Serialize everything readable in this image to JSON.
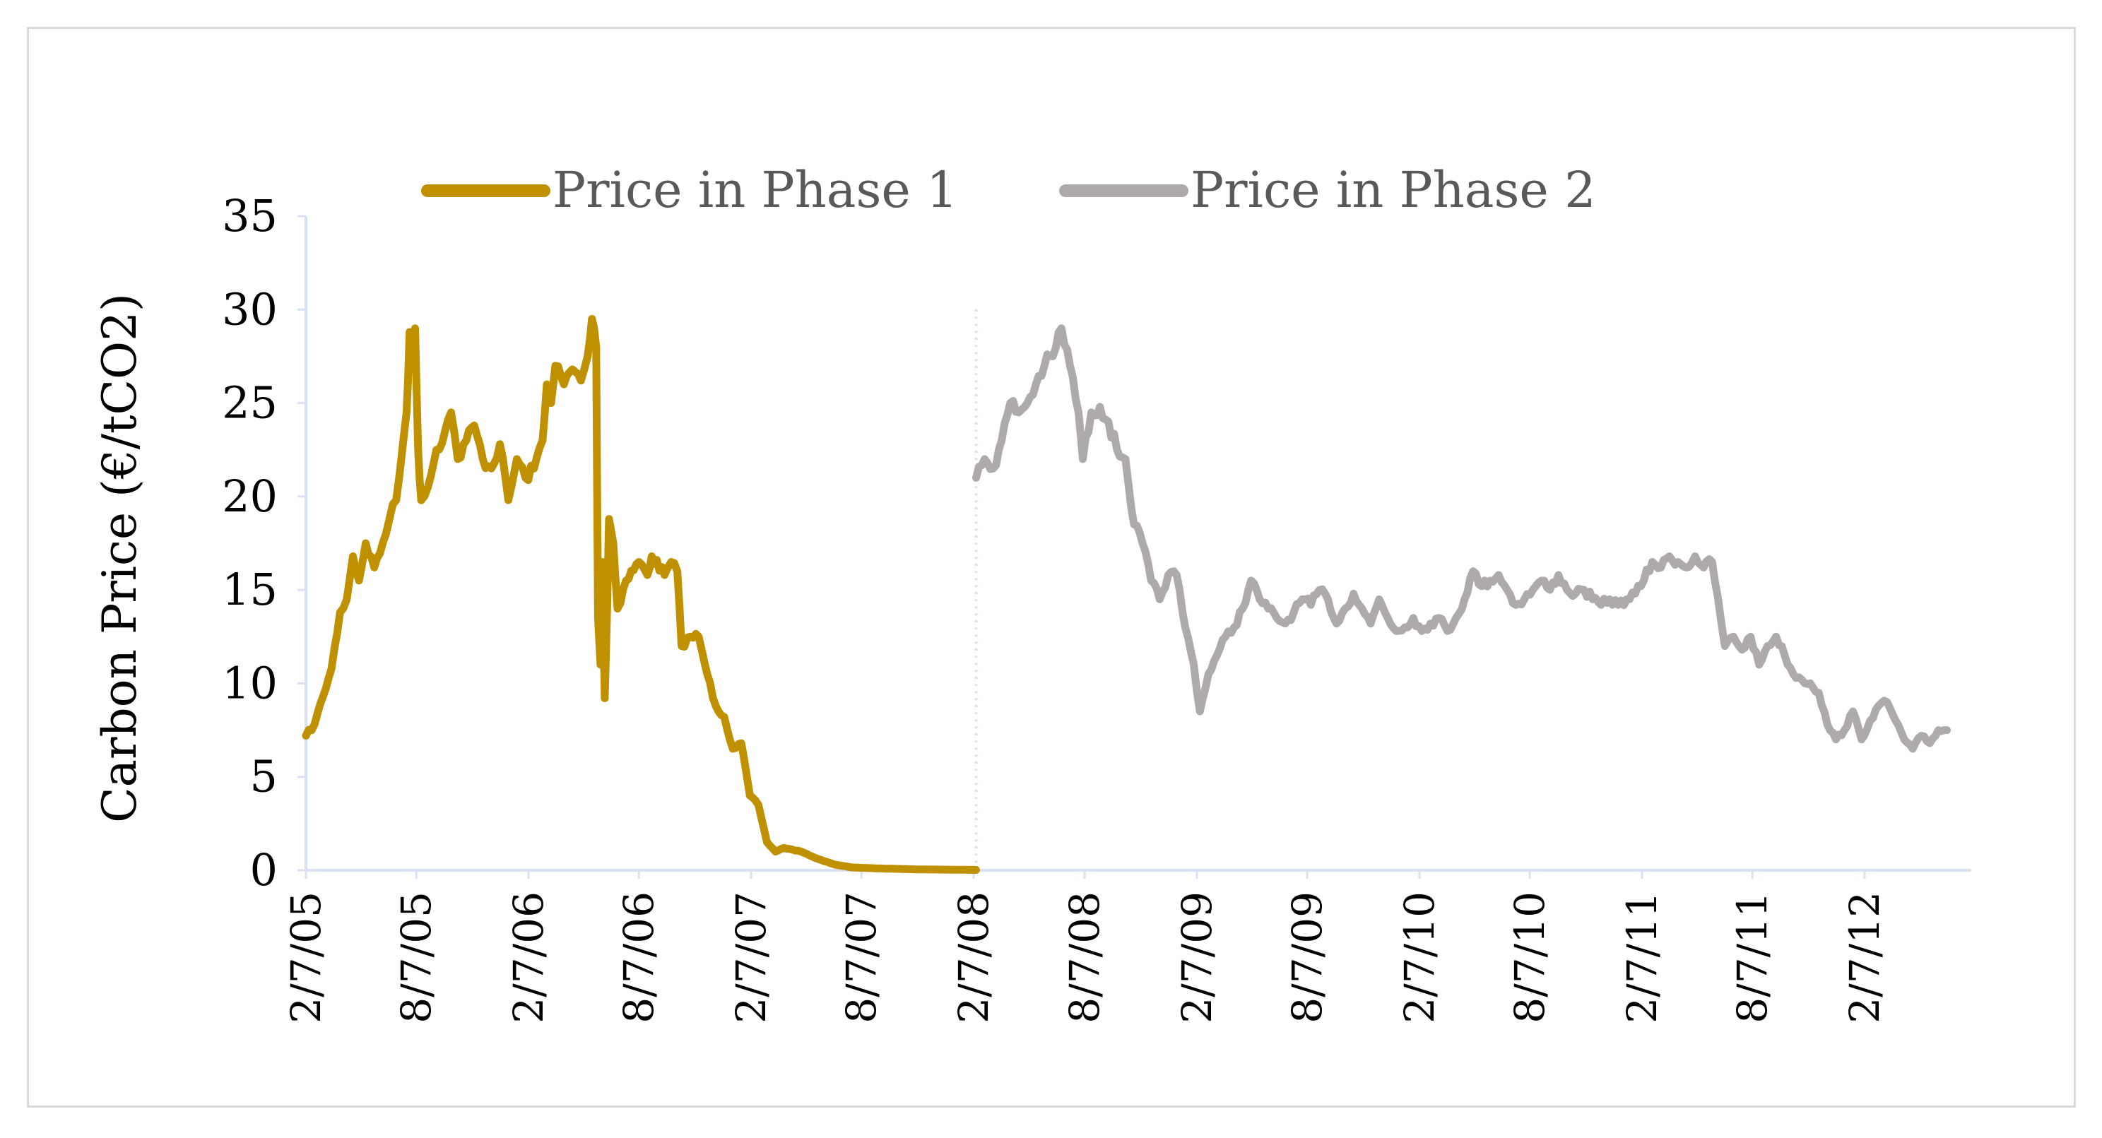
{
  "chart_data": {
    "type": "line",
    "title": "",
    "xlabel": "",
    "ylabel": "Carbon Price (€/tCO2)",
    "ylim": [
      0,
      35
    ],
    "yticks": [
      0,
      5,
      10,
      15,
      20,
      25,
      30,
      35
    ],
    "xlim": [
      "2005-02-07",
      "2012-07-31"
    ],
    "xticks": [
      "2/7/05",
      "8/7/05",
      "2/7/06",
      "8/7/06",
      "2/7/07",
      "8/7/07",
      "2/7/08",
      "8/7/08",
      "2/7/09",
      "8/7/09",
      "2/7/10",
      "8/7/10",
      "2/7/11",
      "8/7/11",
      "2/7/12"
    ],
    "grid": false,
    "legend_position": "top",
    "colors": {
      "phase1": "#bf9000",
      "phase2": "#aeaaaa",
      "axis": "#d9e1f2",
      "frame": "#d9d9d9"
    },
    "series": [
      {
        "name": "Price in Phase 1",
        "color": "#bf9000",
        "points": [
          [
            "2005-02-07",
            7.2
          ],
          [
            "2005-02-21",
            7.8
          ],
          [
            "2005-03-07",
            9.3
          ],
          [
            "2005-03-21",
            10.8
          ],
          [
            "2005-04-04",
            13.8
          ],
          [
            "2005-04-15",
            14.5
          ],
          [
            "2005-04-25",
            16.8
          ],
          [
            "2005-05-05",
            15.5
          ],
          [
            "2005-05-16",
            17.5
          ],
          [
            "2005-05-30",
            16.2
          ],
          [
            "2005-06-13",
            17.5
          ],
          [
            "2005-06-24",
            18.8
          ],
          [
            "2005-07-05",
            19.8
          ],
          [
            "2005-07-15",
            22.5
          ],
          [
            "2005-07-22",
            24.5
          ],
          [
            "2005-07-27",
            28.8
          ],
          [
            "2005-08-01",
            27.5
          ],
          [
            "2005-08-05",
            29.0
          ],
          [
            "2005-08-10",
            22.5
          ],
          [
            "2005-08-15",
            19.8
          ],
          [
            "2005-08-26",
            20.5
          ],
          [
            "2005-09-09",
            22.5
          ],
          [
            "2005-09-23",
            23.5
          ],
          [
            "2005-10-03",
            24.5
          ],
          [
            "2005-10-14",
            22.0
          ],
          [
            "2005-10-28",
            23.0
          ],
          [
            "2005-11-10",
            23.8
          ],
          [
            "2005-11-24",
            22.0
          ],
          [
            "2005-12-08",
            21.5
          ],
          [
            "2005-12-22",
            22.8
          ],
          [
            "2006-01-05",
            19.8
          ],
          [
            "2006-01-19",
            22.0
          ],
          [
            "2006-02-02",
            21.0
          ],
          [
            "2006-02-16",
            21.5
          ],
          [
            "2006-03-02",
            23.0
          ],
          [
            "2006-03-09",
            26.0
          ],
          [
            "2006-03-16",
            25.0
          ],
          [
            "2006-03-23",
            27.0
          ],
          [
            "2006-04-06",
            26.0
          ],
          [
            "2006-04-20",
            26.8
          ],
          [
            "2006-05-04",
            26.2
          ],
          [
            "2006-05-15",
            27.5
          ],
          [
            "2006-05-22",
            29.5
          ],
          [
            "2006-05-29",
            28.0
          ],
          [
            "2006-06-01",
            13.5
          ],
          [
            "2006-06-05",
            11.0
          ],
          [
            "2006-06-08",
            16.5
          ],
          [
            "2006-06-12",
            9.2
          ],
          [
            "2006-06-16",
            14.0
          ],
          [
            "2006-06-19",
            18.8
          ],
          [
            "2006-06-26",
            17.5
          ],
          [
            "2006-07-03",
            14.0
          ],
          [
            "2006-07-17",
            15.5
          ],
          [
            "2006-08-07",
            16.5
          ],
          [
            "2006-08-21",
            15.8
          ],
          [
            "2006-08-28",
            16.8
          ],
          [
            "2006-09-18",
            15.8
          ],
          [
            "2006-09-29",
            16.5
          ],
          [
            "2006-10-09",
            16.0
          ],
          [
            "2006-10-16",
            12.0
          ],
          [
            "2006-10-30",
            12.5
          ],
          [
            "2006-11-13",
            12.5
          ],
          [
            "2006-11-27",
            10.5
          ],
          [
            "2006-12-11",
            8.8
          ],
          [
            "2006-12-25",
            8.2
          ],
          [
            "2007-01-08",
            6.5
          ],
          [
            "2007-01-22",
            6.8
          ],
          [
            "2007-02-05",
            4.0
          ],
          [
            "2007-02-19",
            3.5
          ],
          [
            "2007-03-05",
            1.5
          ],
          [
            "2007-03-19",
            1.0
          ],
          [
            "2007-04-02",
            1.2
          ],
          [
            "2007-04-30",
            1.0
          ],
          [
            "2007-05-28",
            0.6
          ],
          [
            "2007-06-25",
            0.3
          ],
          [
            "2007-07-23",
            0.15
          ],
          [
            "2007-09-03",
            0.1
          ],
          [
            "2007-11-05",
            0.05
          ],
          [
            "2008-01-07",
            0.03
          ],
          [
            "2008-02-11",
            0.02
          ]
        ]
      },
      {
        "name": "Price in Phase 2",
        "color": "#aeaaaa",
        "points": [
          [
            "2008-02-11",
            21.0
          ],
          [
            "2008-02-25",
            22.0
          ],
          [
            "2008-03-10",
            21.5
          ],
          [
            "2008-03-24",
            23.0
          ],
          [
            "2008-04-07",
            25.0
          ],
          [
            "2008-04-21",
            24.5
          ],
          [
            "2008-05-05",
            25.0
          ],
          [
            "2008-05-19",
            26.0
          ],
          [
            "2008-06-02",
            27.0
          ],
          [
            "2008-06-16",
            27.5
          ],
          [
            "2008-06-30",
            29.0
          ],
          [
            "2008-07-14",
            27.0
          ],
          [
            "2008-07-28",
            24.5
          ],
          [
            "2008-08-04",
            22.0
          ],
          [
            "2008-08-18",
            24.5
          ],
          [
            "2008-09-01",
            24.8
          ],
          [
            "2008-09-15",
            24.0
          ],
          [
            "2008-09-29",
            22.5
          ],
          [
            "2008-10-13",
            22.0
          ],
          [
            "2008-10-27",
            18.5
          ],
          [
            "2008-11-10",
            17.5
          ],
          [
            "2008-11-24",
            15.5
          ],
          [
            "2008-12-08",
            14.5
          ],
          [
            "2008-12-22",
            15.8
          ],
          [
            "2009-01-05",
            15.8
          ],
          [
            "2009-01-19",
            13.0
          ],
          [
            "2009-02-02",
            11.0
          ],
          [
            "2009-02-12",
            8.5
          ],
          [
            "2009-02-26",
            10.5
          ],
          [
            "2009-03-12",
            11.5
          ],
          [
            "2009-03-26",
            12.5
          ],
          [
            "2009-04-09",
            13.0
          ],
          [
            "2009-04-23",
            14.0
          ],
          [
            "2009-05-07",
            15.5
          ],
          [
            "2009-05-21",
            14.5
          ],
          [
            "2009-06-04",
            14.0
          ],
          [
            "2009-06-18",
            13.5
          ],
          [
            "2009-07-02",
            13.2
          ],
          [
            "2009-07-16",
            13.8
          ],
          [
            "2009-07-30",
            14.5
          ],
          [
            "2009-08-13",
            14.2
          ],
          [
            "2009-08-27",
            15.0
          ],
          [
            "2009-09-10",
            14.5
          ],
          [
            "2009-09-24",
            13.2
          ],
          [
            "2009-10-08",
            14.0
          ],
          [
            "2009-10-22",
            14.8
          ],
          [
            "2009-11-05",
            14.0
          ],
          [
            "2009-11-19",
            13.2
          ],
          [
            "2009-12-03",
            14.5
          ],
          [
            "2009-12-17",
            13.5
          ],
          [
            "2009-12-31",
            12.8
          ],
          [
            "2010-01-14",
            13.0
          ],
          [
            "2010-01-28",
            13.5
          ],
          [
            "2010-02-11",
            12.8
          ],
          [
            "2010-02-25",
            13.2
          ],
          [
            "2010-03-11",
            13.5
          ],
          [
            "2010-03-25",
            12.8
          ],
          [
            "2010-04-08",
            13.5
          ],
          [
            "2010-04-22",
            14.5
          ],
          [
            "2010-05-06",
            16.0
          ],
          [
            "2010-05-20",
            15.2
          ],
          [
            "2010-06-03",
            15.5
          ],
          [
            "2010-06-17",
            15.8
          ],
          [
            "2010-07-01",
            15.0
          ],
          [
            "2010-07-15",
            14.2
          ],
          [
            "2010-07-29",
            14.5
          ],
          [
            "2010-08-12",
            15.0
          ],
          [
            "2010-08-26",
            15.5
          ],
          [
            "2010-09-09",
            15.0
          ],
          [
            "2010-09-23",
            15.8
          ],
          [
            "2010-10-07",
            15.0
          ],
          [
            "2010-10-21",
            14.8
          ],
          [
            "2010-11-04",
            15.0
          ],
          [
            "2010-11-18",
            14.5
          ],
          [
            "2010-12-02",
            14.2
          ],
          [
            "2010-12-16",
            14.5
          ],
          [
            "2010-12-30",
            14.2
          ],
          [
            "2011-01-13",
            14.5
          ],
          [
            "2011-01-27",
            14.8
          ],
          [
            "2011-02-10",
            15.5
          ],
          [
            "2011-02-24",
            16.5
          ],
          [
            "2011-03-10",
            16.2
          ],
          [
            "2011-03-24",
            16.8
          ],
          [
            "2011-04-07",
            16.5
          ],
          [
            "2011-04-21",
            16.2
          ],
          [
            "2011-05-05",
            16.8
          ],
          [
            "2011-05-19",
            16.2
          ],
          [
            "2011-06-02",
            16.5
          ],
          [
            "2011-06-16",
            13.5
          ],
          [
            "2011-06-23",
            12.0
          ],
          [
            "2011-07-07",
            12.5
          ],
          [
            "2011-07-21",
            11.8
          ],
          [
            "2011-08-04",
            12.5
          ],
          [
            "2011-08-18",
            11.0
          ],
          [
            "2011-09-01",
            12.0
          ],
          [
            "2011-09-15",
            12.5
          ],
          [
            "2011-09-29",
            11.5
          ],
          [
            "2011-10-13",
            10.5
          ],
          [
            "2011-10-27",
            10.2
          ],
          [
            "2011-11-10",
            10.0
          ],
          [
            "2011-11-24",
            9.5
          ],
          [
            "2011-12-08",
            7.8
          ],
          [
            "2011-12-22",
            7.0
          ],
          [
            "2012-01-05",
            7.5
          ],
          [
            "2012-01-19",
            8.5
          ],
          [
            "2012-02-02",
            7.0
          ],
          [
            "2012-02-16",
            8.0
          ],
          [
            "2012-03-01",
            8.8
          ],
          [
            "2012-03-15",
            9.0
          ],
          [
            "2012-03-29",
            8.0
          ],
          [
            "2012-04-12",
            7.0
          ],
          [
            "2012-04-26",
            6.5
          ],
          [
            "2012-05-10",
            7.2
          ],
          [
            "2012-05-24",
            6.8
          ],
          [
            "2012-06-07",
            7.5
          ],
          [
            "2012-06-21",
            7.5
          ]
        ]
      }
    ]
  }
}
